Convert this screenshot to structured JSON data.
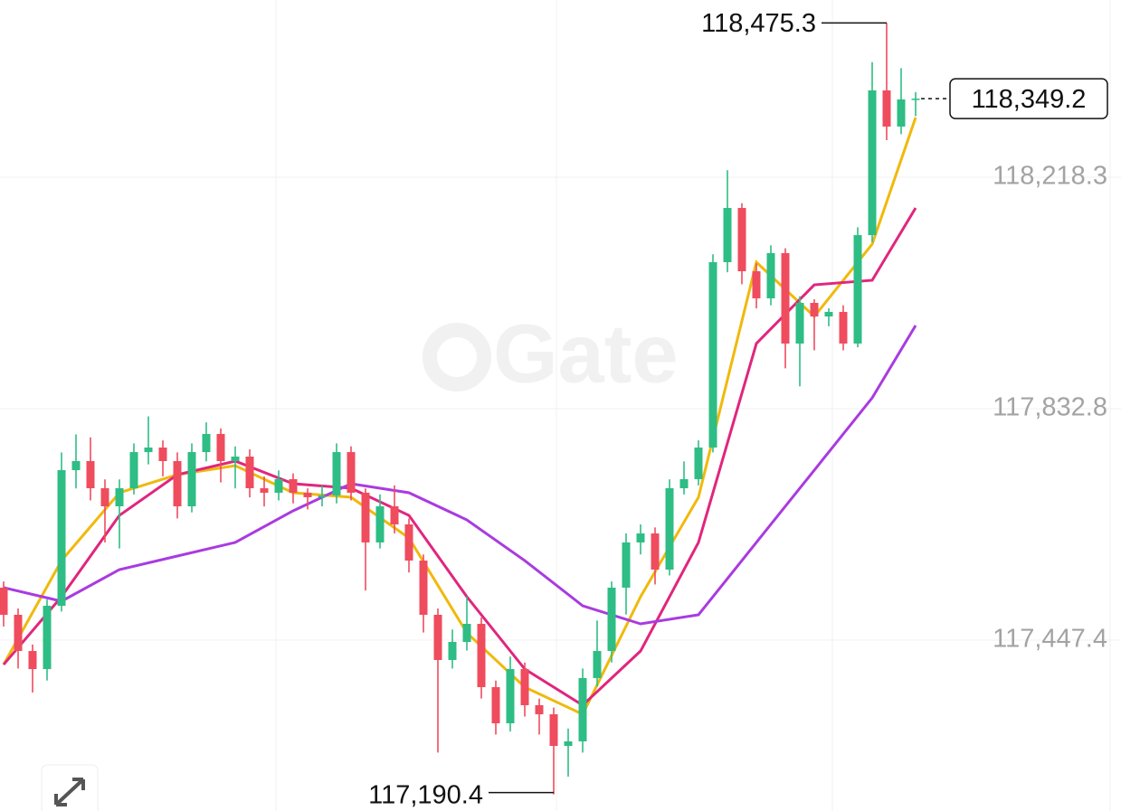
{
  "chart_data": {
    "type": "candlestick",
    "watermark": "Gate",
    "up_color": "#2ebd85",
    "down_color": "#ef4c5e",
    "ylim": [
      117162.7,
      118513.5
    ],
    "yticks": [
      {
        "value": 118218.3,
        "label": "118,218.3"
      },
      {
        "value": 117832.8,
        "label": "117,832.8"
      },
      {
        "value": 117447.4,
        "label": "117,447.4"
      }
    ],
    "grid": true,
    "open": [
      117534.7,
      117489.5,
      117429.2,
      117399.1,
      117504.5,
      117730.4,
      117745.5,
      117700.3,
      117670.2,
      117700.3,
      117760.5,
      117768.1,
      117745.5,
      117670.2,
      117760.5,
      117790.7,
      117745.5,
      117753.0,
      117700.3,
      117692.8,
      117715.4,
      117692.8,
      117685.3,
      117688.3,
      117760.5,
      117692.8,
      117610.0,
      117670.2,
      117640.1,
      117579.8,
      117489.5,
      117414.2,
      117444.3,
      117474.4,
      117369.0,
      117308.8,
      117399.1,
      117338.9,
      117323.8,
      117271.1,
      117278.7,
      117384.1,
      117429.2,
      117534.7,
      117610.0,
      117625.0,
      117564.8,
      117700.3,
      117715.4,
      117768.1,
      118076.8,
      118167.1,
      118061.7,
      118016.6,
      118091.9,
      117941.3,
      118009.0,
      117986.4,
      117994.0,
      117941.3,
      118121.9,
      118362.9,
      118302.7,
      118347.9
    ],
    "high": [
      117545,
      117500,
      117440,
      117515,
      117760,
      117790,
      117785,
      117715,
      117715,
      117775,
      117820,
      117780,
      117760,
      117775,
      117810,
      117800,
      117770,
      117765,
      117720,
      117730,
      117725,
      117700,
      117705,
      117775,
      117770,
      117700,
      117690,
      117705,
      117650,
      117590,
      117500,
      117465,
      117520,
      117485,
      117380,
      117420,
      117410,
      117350,
      117335,
      117300,
      117400,
      117480,
      117545,
      117625,
      117640,
      117635,
      117715,
      117745,
      117780,
      118090,
      118230,
      118175,
      118075,
      118105,
      118100,
      118020,
      118015,
      118000,
      118005,
      118135,
      118410,
      118475.3,
      118400,
      118360
    ],
    "low": [
      117470,
      117400,
      117360,
      117380,
      117495,
      117700,
      117680,
      117610,
      117600,
      117690,
      117740,
      117720,
      117650,
      117660,
      117745,
      117710,
      117700,
      117685,
      117670,
      117680,
      117675,
      117665,
      117670,
      117675,
      117680,
      117530,
      117600,
      117625,
      117560,
      117460,
      117260,
      117400,
      117430,
      117350,
      117290,
      117295,
      117320,
      117290,
      117190.4,
      117220,
      117260,
      117370,
      117410,
      117490,
      117590,
      117540,
      117555,
      117690,
      117705,
      117760,
      118060,
      118040,
      118000,
      118005,
      117900,
      117870,
      117930,
      117970,
      117930,
      117935,
      118110,
      118280,
      118290,
      118320
    ],
    "close": [
      117489.5,
      117429.2,
      117399.1,
      117504.5,
      117730.4,
      117745.5,
      117700.3,
      117670.2,
      117700.3,
      117760.5,
      117768.1,
      117745.5,
      117670.2,
      117760.5,
      117790.7,
      117745.5,
      117753.0,
      117700.3,
      117692.8,
      117715.4,
      117692.8,
      117685.3,
      117688.3,
      117760.5,
      117692.8,
      117610.0,
      117670.2,
      117640.1,
      117579.8,
      117489.5,
      117414.2,
      117444.3,
      117474.4,
      117369.0,
      117308.8,
      117399.1,
      117338.9,
      117323.8,
      117271.1,
      117278.7,
      117384.1,
      117429.2,
      117534.7,
      117610.0,
      117625.0,
      117564.8,
      117700.3,
      117715.4,
      117768.1,
      118076.8,
      118167.1,
      118061.7,
      118016.6,
      118091.9,
      117941.3,
      118009.0,
      117986.4,
      117994.0,
      117941.3,
      118121.9,
      118362.9,
      118302.7,
      118347.9,
      118349.2
    ],
    "moving_averages": [
      {
        "color": "#f0b90b",
        "x": [
          0,
          4,
          8,
          12,
          16,
          20,
          24,
          28,
          32,
          36,
          40,
          44,
          48,
          52,
          56,
          60,
          63
        ],
        "values": [
          117406.6,
          117579.8,
          117692.8,
          117722.9,
          117737.9,
          117692.8,
          117685.3,
          117617.5,
          117459.4,
          117369.0,
          117323.8,
          117519.6,
          117685.3,
          118076.8,
          117986.4,
          118106.9,
          118317.7
        ]
      },
      {
        "color": "#e0267d",
        "x": [
          0,
          4,
          8,
          12,
          16,
          20,
          24,
          28,
          32,
          36,
          40,
          44,
          48,
          52,
          56,
          60,
          63
        ],
        "values": [
          117406.6,
          117519.6,
          117655.1,
          117722.9,
          117745.5,
          117707.8,
          117700.3,
          117655.1,
          117519.6,
          117399.1,
          117338.9,
          117429.2,
          117610.0,
          117941.3,
          118039.1,
          118046.7,
          118167.1
        ]
      },
      {
        "color": "#a93be0",
        "x": [
          0,
          4,
          8,
          12,
          16,
          20,
          24,
          28,
          32,
          36,
          40,
          44,
          48,
          52,
          56,
          60,
          63
        ],
        "values": [
          117534.7,
          117512.1,
          117564.8,
          117587.4,
          117610.0,
          117662.7,
          117707.8,
          117692.8,
          117647.6,
          117579.8,
          117504.5,
          117474.4,
          117489.5,
          117610.0,
          117730.4,
          117850.9,
          117971.4
        ]
      }
    ],
    "annotations": [
      {
        "value": 118475.3,
        "label": "118,475.3"
      },
      {
        "value": 117190.4,
        "label": "117,190.4"
      }
    ],
    "last_price": {
      "value": 118349.2,
      "label": "118,349.2"
    }
  }
}
